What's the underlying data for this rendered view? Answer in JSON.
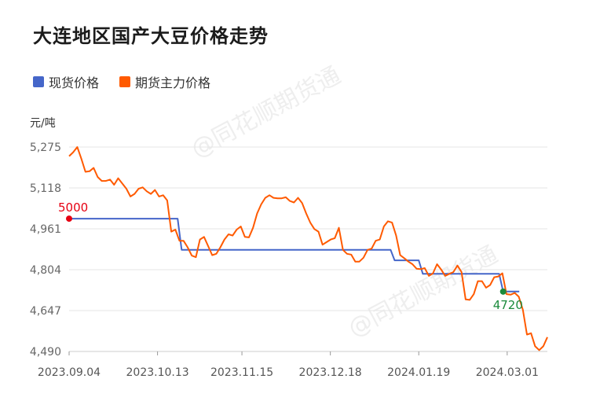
{
  "title": "大连地区国产大豆价格走势",
  "watermark": "@同花顺期货通",
  "colors": {
    "spot": "#4566c9",
    "futures": "#ff5a00",
    "start_marker": "#e60012",
    "end_marker": "#1b8a3c",
    "grid": "#e6e6e6",
    "axis": "#888888"
  },
  "chart_data": {
    "type": "line",
    "title": "大连地区国产大豆价格走势",
    "ylabel": "元/吨",
    "xlabel": "",
    "ylim": [
      4490,
      5275
    ],
    "yticks": [
      "5,275",
      "5,118",
      "4,961",
      "4,804",
      "4,647",
      "4,490"
    ],
    "ytick_values": [
      5275,
      5118,
      4961,
      4804,
      4647,
      4490
    ],
    "xticks": [
      "2023.09.04",
      "2023.10.13",
      "2023.11.15",
      "2023.12.18",
      "2024.01.19",
      "2024.03.01"
    ],
    "x_range": [
      0,
      119
    ],
    "xtick_positions": [
      0,
      22,
      43,
      65,
      87,
      109
    ],
    "legend_position": "top-left",
    "grid": true,
    "series": [
      {
        "name": "现货价格",
        "points": [
          [
            0,
            5000
          ],
          [
            27,
            5000
          ],
          [
            28,
            4880
          ],
          [
            80,
            4880
          ],
          [
            81,
            4840
          ],
          [
            87,
            4840
          ],
          [
            88,
            4788
          ],
          [
            107,
            4788
          ],
          [
            108,
            4720
          ],
          [
            112,
            4720
          ]
        ],
        "start_label": "5000",
        "end_label": "4720"
      },
      {
        "name": "期货主力价格",
        "values": [
          5240,
          5255,
          5275,
          5230,
          5180,
          5182,
          5195,
          5160,
          5145,
          5145,
          5150,
          5130,
          5155,
          5135,
          5115,
          5085,
          5095,
          5115,
          5120,
          5105,
          5095,
          5110,
          5085,
          5090,
          5070,
          4950,
          4958,
          4915,
          4915,
          4890,
          4858,
          4852,
          4920,
          4930,
          4895,
          4860,
          4865,
          4890,
          4920,
          4940,
          4935,
          4958,
          4970,
          4930,
          4928,
          4965,
          5020,
          5055,
          5080,
          5090,
          5080,
          5078,
          5078,
          5082,
          5068,
          5062,
          5080,
          5060,
          5020,
          4985,
          4960,
          4950,
          4900,
          4910,
          4920,
          4925,
          4965,
          4880,
          4865,
          4862,
          4835,
          4835,
          4850,
          4880,
          4885,
          4915,
          4920,
          4970,
          4990,
          4985,
          4935,
          4860,
          4848,
          4835,
          4825,
          4808,
          4806,
          4810,
          4780,
          4790,
          4825,
          4805,
          4780,
          4788,
          4795,
          4820,
          4795,
          4690,
          4688,
          4710,
          4760,
          4760,
          4735,
          4745,
          4775,
          4778,
          4790,
          4710,
          4708,
          4715,
          4700,
          4650,
          4555,
          4560,
          4510,
          4495,
          4510,
          4545
        ]
      }
    ]
  }
}
